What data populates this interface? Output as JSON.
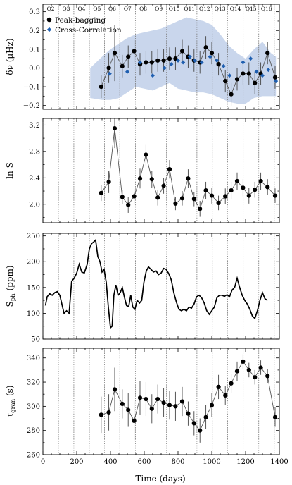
{
  "x_ticks": [
    "0",
    "200",
    "400",
    "600",
    "800",
    "1000",
    "1200",
    "1400"
  ],
  "x_label": "Time (days)",
  "quarters": [
    "Q2",
    "Q3",
    "Q4",
    "Q5",
    "Q6",
    "Q7",
    "Q8",
    "Q9",
    "Q10",
    "Q11",
    "Q12",
    "Q13",
    "Q14",
    "Q15",
    "Q16"
  ],
  "quarter_boundaries": [
    0,
    92,
    183,
    275,
    365,
    455,
    548,
    640,
    732,
    823,
    912,
    1003,
    1094,
    1186,
    1278,
    1370
  ],
  "colors": {
    "band": "#c9d6ec",
    "pb": "#000000",
    "cc": "#1f5fb0",
    "line": "#555555",
    "err": "#444444",
    "qline": "#777777"
  },
  "chart_data": [
    {
      "type": "scatter",
      "ylabel": "δν (μHz)",
      "ylim": [
        -0.22,
        0.34
      ],
      "yticks": [
        -0.2,
        -0.1,
        0.0,
        0.1,
        0.2,
        0.3
      ],
      "ytick_labels": [
        "−0.2",
        "−0.1",
        "0.0",
        "0.1",
        "0.2",
        "0.3"
      ],
      "legend": {
        "placement": "top-left",
        "entries": [
          "Peak-bagging",
          "Cross-Correlation"
        ]
      },
      "band": {
        "x": [
          280,
          350,
          400,
          450,
          500,
          550,
          600,
          650,
          700,
          750,
          800,
          850,
          900,
          950,
          1000,
          1050,
          1100,
          1150,
          1200,
          1250,
          1300,
          1350,
          1380
        ],
        "upper": [
          0.0,
          0.06,
          0.1,
          0.13,
          0.16,
          0.18,
          0.19,
          0.2,
          0.21,
          0.23,
          0.25,
          0.27,
          0.26,
          0.25,
          0.23,
          0.18,
          0.12,
          0.08,
          0.05,
          0.1,
          0.14,
          0.08,
          0.06
        ],
        "lower": [
          -0.16,
          -0.17,
          -0.17,
          -0.16,
          -0.13,
          -0.1,
          -0.11,
          -0.12,
          -0.1,
          -0.08,
          -0.11,
          -0.12,
          -0.13,
          -0.13,
          -0.14,
          -0.16,
          -0.18,
          -0.19,
          -0.19,
          -0.16,
          -0.15,
          -0.15,
          -0.15
        ]
      },
      "series": [
        {
          "name": "Peak-bagging",
          "style": "line-markers",
          "x": [
            345,
            390,
            425,
            470,
            505,
            540,
            575,
            610,
            645,
            680,
            715,
            750,
            785,
            825,
            860,
            895,
            930,
            965,
            1000,
            1040,
            1080,
            1115,
            1150,
            1185,
            1220,
            1255,
            1290,
            1330,
            1375
          ],
          "y": [
            -0.1,
            0.0,
            0.08,
            0.01,
            0.06,
            0.09,
            0.02,
            0.03,
            0.03,
            0.04,
            0.04,
            0.05,
            0.05,
            0.09,
            0.06,
            0.04,
            0.03,
            0.11,
            0.08,
            0.02,
            -0.07,
            -0.14,
            -0.06,
            -0.03,
            -0.03,
            -0.08,
            -0.03,
            0.08,
            -0.05
          ],
          "err": [
            0.06,
            0.08,
            0.15,
            0.06,
            0.06,
            0.06,
            0.06,
            0.06,
            0.06,
            0.06,
            0.06,
            0.06,
            0.06,
            0.06,
            0.06,
            0.06,
            0.06,
            0.06,
            0.06,
            0.06,
            0.06,
            0.06,
            0.06,
            0.06,
            0.06,
            0.06,
            0.06,
            0.06,
            0.06
          ]
        },
        {
          "name": "Cross-Correlation",
          "style": "markers",
          "x": [
            395,
            500,
            575,
            650,
            720,
            760,
            800,
            830,
            870,
            900,
            940,
            990,
            1030,
            1070,
            1105,
            1185,
            1230,
            1265,
            1300,
            1335,
            1380
          ],
          "y": [
            -0.03,
            -0.02,
            0.03,
            -0.04,
            0.0,
            0.02,
            0.04,
            0.03,
            0.06,
            0.04,
            0.03,
            0.06,
            0.04,
            0.01,
            -0.04,
            0.03,
            0.05,
            -0.02,
            -0.04,
            -0.01,
            -0.07
          ]
        }
      ]
    },
    {
      "type": "line",
      "ylabel": "ln S",
      "ylim": [
        1.72,
        3.3
      ],
      "yticks": [
        2.0,
        2.4,
        2.8,
        3.2
      ],
      "ytick_labels": [
        "2.0",
        "2.4",
        "2.8",
        "3.2"
      ],
      "series": [
        {
          "style": "line-markers",
          "x": [
            345,
            390,
            425,
            470,
            505,
            540,
            575,
            610,
            645,
            680,
            715,
            750,
            785,
            825,
            860,
            895,
            930,
            965,
            1000,
            1040,
            1080,
            1115,
            1150,
            1185,
            1220,
            1255,
            1290,
            1330,
            1375
          ],
          "y": [
            2.17,
            2.34,
            3.15,
            2.11,
            1.99,
            2.12,
            2.39,
            2.75,
            2.38,
            2.1,
            2.28,
            2.53,
            2.01,
            2.09,
            2.39,
            2.08,
            1.93,
            2.21,
            2.13,
            2.02,
            2.12,
            2.21,
            2.35,
            2.25,
            2.13,
            2.22,
            2.35,
            2.26,
            2.13
          ],
          "err": [
            0.12,
            0.17,
            0.3,
            0.11,
            0.12,
            0.11,
            0.15,
            0.16,
            0.13,
            0.12,
            0.12,
            0.14,
            0.1,
            0.11,
            0.14,
            0.11,
            0.12,
            0.13,
            0.12,
            0.11,
            0.12,
            0.13,
            0.13,
            0.13,
            0.12,
            0.12,
            0.13,
            0.12,
            0.11
          ]
        }
      ]
    },
    {
      "type": "line",
      "ylabel": "S_ph (ppm)",
      "ylim": [
        50,
        255
      ],
      "yticks": [
        50,
        100,
        150,
        200,
        250
      ],
      "ytick_labels": [
        "50",
        "100",
        "150",
        "200",
        "250"
      ],
      "series": [
        {
          "style": "line",
          "x": [
            15,
            25,
            40,
            55,
            70,
            85,
            100,
            112,
            125,
            140,
            155,
            170,
            185,
            200,
            215,
            230,
            245,
            262,
            275,
            288,
            300,
            312,
            325,
            338,
            350,
            362,
            375,
            388,
            400,
            410,
            420,
            432,
            445,
            458,
            470,
            482,
            495,
            508,
            520,
            532,
            545,
            558,
            572,
            585,
            598,
            612,
            625,
            640,
            655,
            670,
            685,
            700,
            715,
            730,
            745,
            760,
            775,
            790,
            805,
            820,
            835,
            850,
            865,
            880,
            895,
            910,
            925,
            940,
            955,
            970,
            985,
            1000,
            1015,
            1030,
            1045,
            1060,
            1075,
            1090,
            1105,
            1120,
            1135,
            1150,
            1165,
            1180,
            1195,
            1210,
            1225,
            1240,
            1255,
            1270,
            1285,
            1300,
            1315,
            1330
          ],
          "y": [
            115,
            132,
            138,
            135,
            140,
            142,
            135,
            118,
            100,
            105,
            100,
            162,
            168,
            178,
            195,
            180,
            178,
            195,
            225,
            235,
            238,
            242,
            210,
            200,
            180,
            185,
            160,
            110,
            72,
            75,
            135,
            155,
            135,
            140,
            150,
            132,
            115,
            113,
            135,
            112,
            108,
            125,
            120,
            125,
            160,
            182,
            190,
            185,
            180,
            182,
            175,
            178,
            187,
            185,
            177,
            165,
            140,
            122,
            108,
            105,
            108,
            105,
            112,
            110,
            118,
            132,
            135,
            130,
            120,
            105,
            98,
            105,
            112,
            130,
            135,
            135,
            133,
            136,
            132,
            145,
            150,
            168,
            150,
            135,
            125,
            118,
            108,
            95,
            90,
            105,
            125,
            140,
            128,
            125
          ]
        }
      ]
    },
    {
      "type": "line",
      "ylabel": "τ_gran (s)",
      "ylim": [
        260,
        348
      ],
      "yticks": [
        260,
        280,
        300,
        320,
        340
      ],
      "ytick_labels": [
        "260",
        "280",
        "300",
        "320",
        "340"
      ],
      "series": [
        {
          "style": "line-markers",
          "x": [
            345,
            390,
            425,
            470,
            505,
            540,
            575,
            610,
            645,
            680,
            715,
            750,
            785,
            825,
            860,
            895,
            930,
            965,
            1000,
            1040,
            1080,
            1115,
            1150,
            1185,
            1220,
            1255,
            1290,
            1330,
            1375
          ],
          "y": [
            293,
            295,
            314,
            302,
            297,
            288,
            307,
            306,
            298,
            306,
            303,
            301,
            300,
            304,
            294,
            286,
            280,
            291,
            301,
            316,
            309,
            319,
            329,
            337,
            330,
            324,
            332,
            325,
            291
          ],
          "err": [
            15,
            15,
            18,
            12,
            14,
            16,
            14,
            14,
            12,
            12,
            12,
            12,
            12,
            12,
            10,
            10,
            10,
            10,
            10,
            10,
            8,
            8,
            8,
            6,
            6,
            6,
            6,
            6,
            8
          ]
        }
      ]
    }
  ]
}
